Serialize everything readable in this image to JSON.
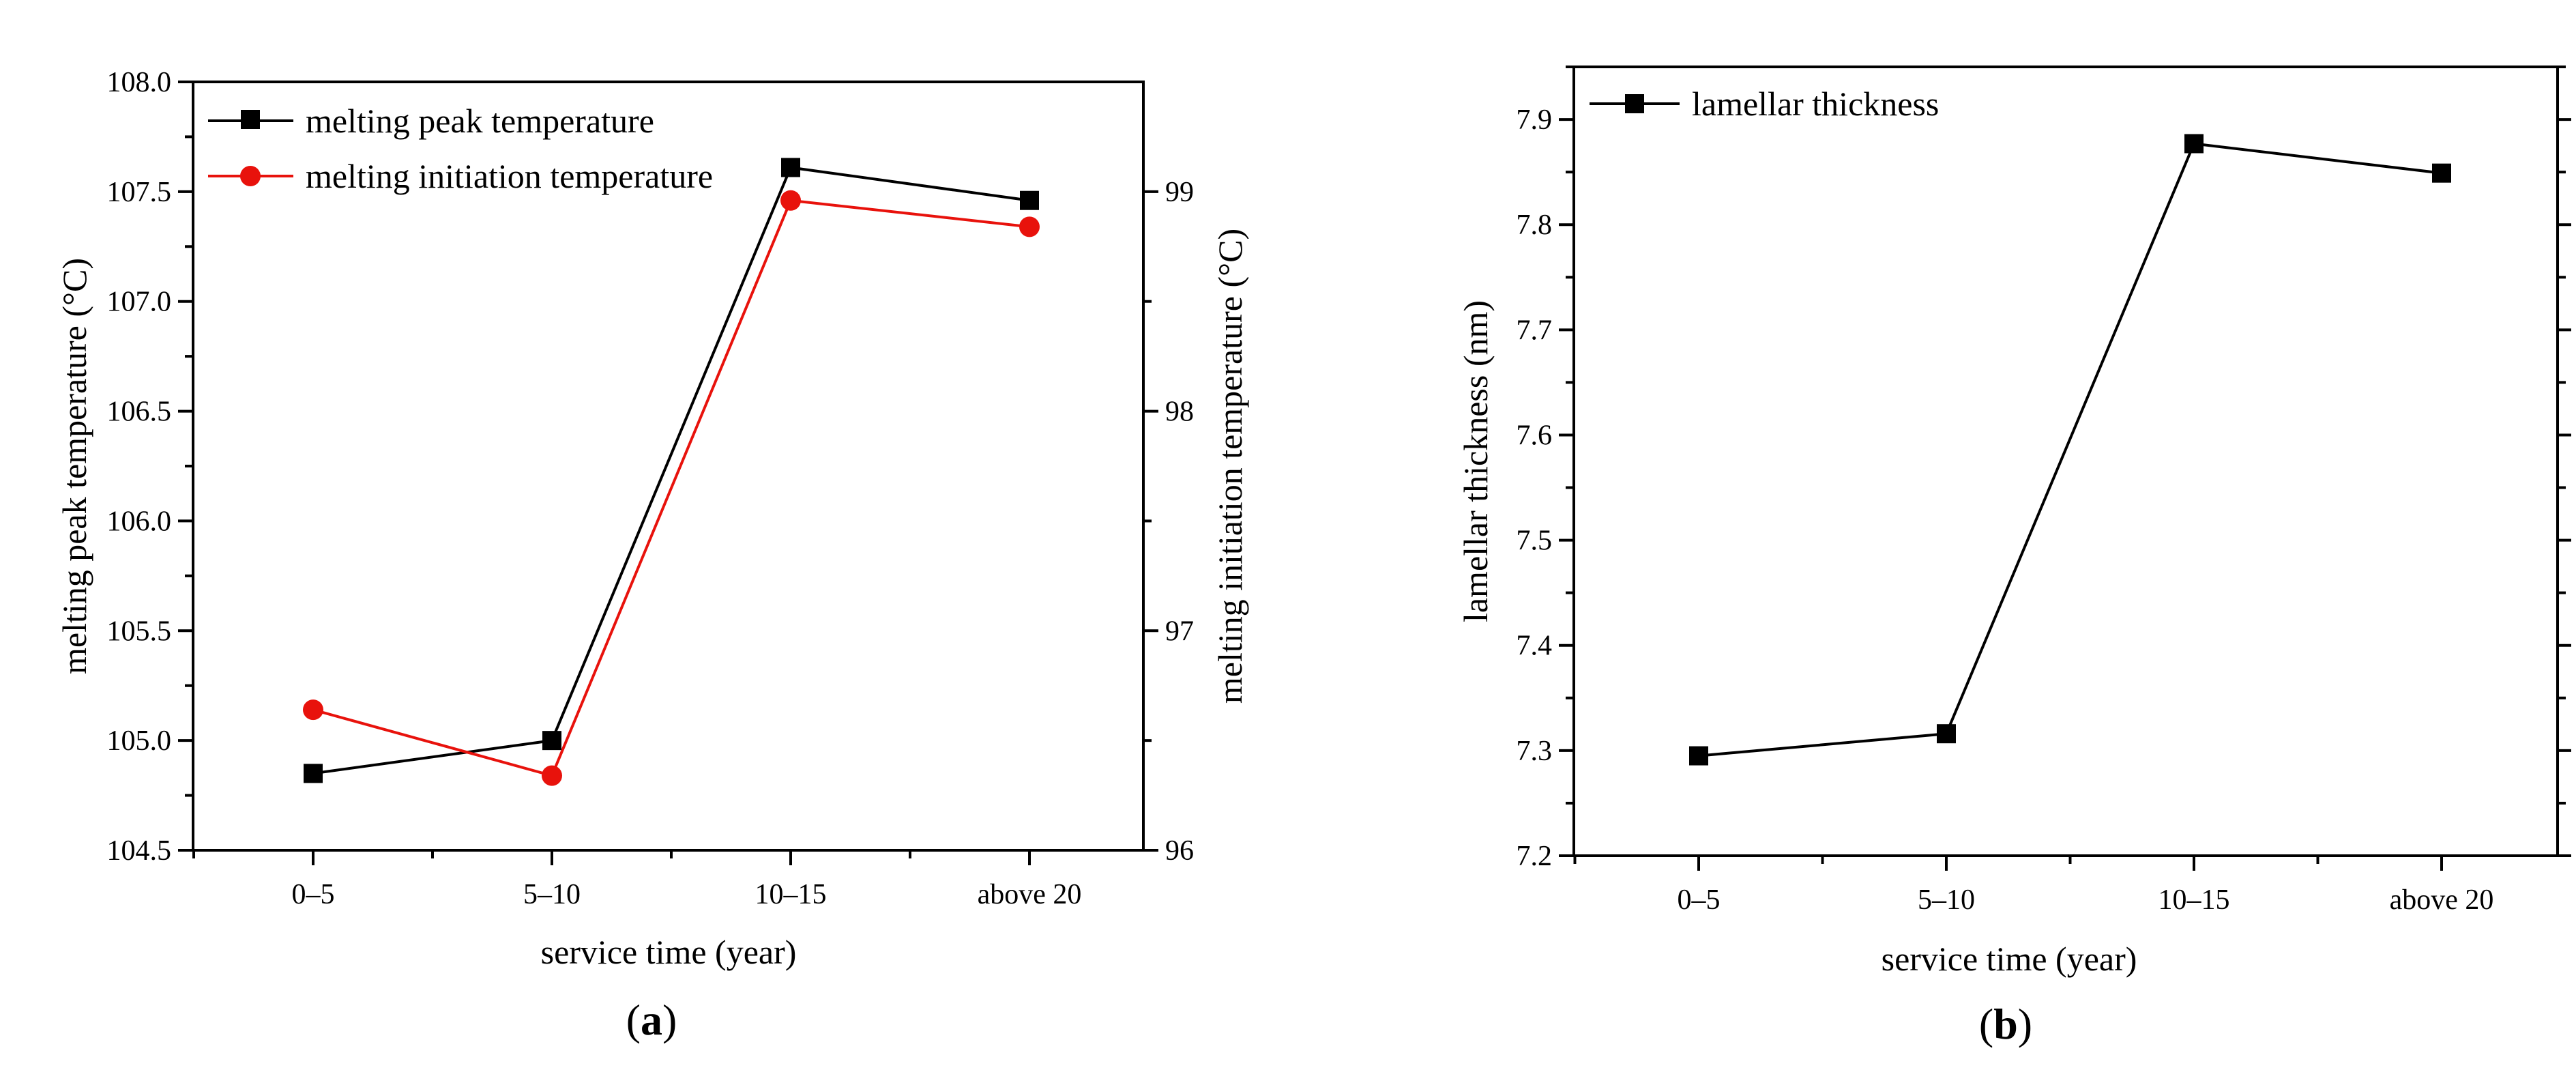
{
  "chart_data": [
    {
      "type": "line",
      "panel_label": "a",
      "categories": [
        "0–5",
        "5–10",
        "10–15",
        "above 20"
      ],
      "xlabel": "service time (year)",
      "ylabel": "melting peak temperature (°C)",
      "ylim": [
        104.5,
        108.0
      ],
      "yticks": [
        "104.5",
        "105.0",
        "105.5",
        "106.0",
        "106.5",
        "107.0",
        "107.5",
        "108.0"
      ],
      "y2label": "melting initiation temperature (°C)",
      "y2lim": [
        96,
        99.5
      ],
      "y2ticks": [
        "96",
        "97",
        "98",
        "99"
      ],
      "legend_position": "top-left",
      "series": [
        {
          "name": "melting peak temperature",
          "axis": "left",
          "marker": "square",
          "color": "#000000",
          "values": [
            104.85,
            105.0,
            107.61,
            107.46
          ]
        },
        {
          "name": "melting initiation temperature",
          "axis": "right",
          "marker": "circle",
          "color": "#e8120c",
          "values": [
            96.64,
            96.34,
            98.96,
            98.84
          ]
        }
      ]
    },
    {
      "type": "line",
      "panel_label": "b",
      "categories": [
        "0–5",
        "5–10",
        "10–15",
        "above 20"
      ],
      "xlabel": "service time (year)",
      "ylabel": "lamellar thickness (nm)",
      "ylim": [
        7.2,
        7.95
      ],
      "yticks": [
        "7.2",
        "7.3",
        "7.4",
        "7.5",
        "7.6",
        "7.7",
        "7.8",
        "7.9"
      ],
      "legend_position": "top-left",
      "series": [
        {
          "name": "lamellar thickness",
          "axis": "left",
          "marker": "square",
          "color": "#000000",
          "values": [
            7.295,
            7.316,
            7.877,
            7.849
          ]
        }
      ]
    }
  ]
}
